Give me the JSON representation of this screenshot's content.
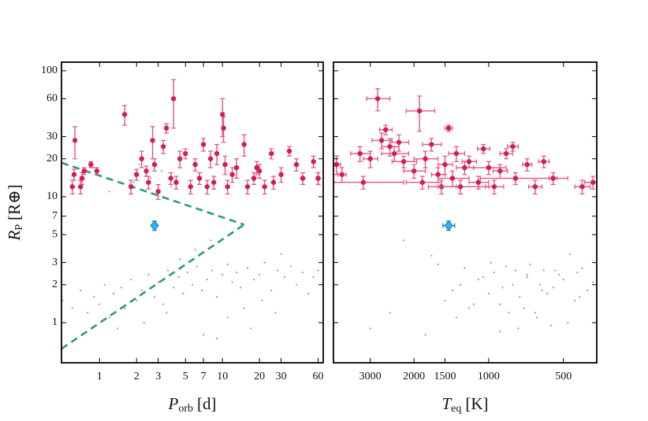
{
  "chart_data": [
    {
      "type": "scatter",
      "xscale": "log",
      "yscale": "log",
      "xlim": [
        0.49,
        66
      ],
      "ylim": [
        0.48,
        117
      ],
      "xticks": [
        1,
        2,
        3,
        5,
        7,
        10,
        20,
        30,
        60
      ],
      "yticks": [
        1,
        2,
        3,
        5,
        7,
        10,
        20,
        30,
        60,
        100
      ],
      "xlabel": {
        "main": "P",
        "sub": "orb",
        "unit": "[d]"
      },
      "ylabel": {
        "main": "R",
        "sub": "P",
        "unit": "[R⊕]"
      },
      "series": [
        {
          "marker": "dot",
          "color": "#9a9a9a",
          "x": [
            0.5,
            0.6,
            0.7,
            0.8,
            0.9,
            1.0,
            1.1,
            1.2,
            1.3,
            1.5,
            1.6,
            1.8,
            2.0,
            2.2,
            2.5,
            2.8,
            3.0,
            3.3,
            3.6,
            4.0,
            4.4,
            4.8,
            5.2,
            5.7,
            6.2,
            6.8,
            7.5,
            8.2,
            9.0,
            10,
            11,
            12,
            13,
            14,
            16,
            18,
            20,
            22,
            25,
            28,
            32,
            36,
            40,
            45,
            50,
            55,
            60,
            1.4,
            2.3,
            3.5,
            4.5,
            6.0,
            8.0,
            11,
            15,
            21,
            30,
            2.6,
            3.2,
            1.9,
            2.1,
            2.4,
            3.8,
            5.5,
            0.9,
            1.2,
            7,
            9,
            17,
            27
          ],
          "values": [
            1.5,
            1.3,
            1.8,
            1.2,
            1.6,
            1.4,
            2.0,
            1.1,
            1.7,
            1.9,
            1.3,
            2.2,
            1.5,
            1.8,
            2.4,
            1.6,
            2.1,
            1.4,
            2.6,
            1.9,
            2.3,
            1.7,
            2.5,
            2.0,
            2.8,
            1.8,
            2.2,
            2.6,
            1.6,
            2.4,
            2.9,
            2.1,
            2.5,
            1.9,
            2.7,
            2.2,
            2.4,
            3.0,
            1.8,
            2.6,
            2.3,
            2.8,
            2.0,
            2.5,
            1.7,
            2.3,
            2.6,
            0.9,
            1.0,
            1.2,
            3.2,
            3.8,
            4.5,
            1.1,
            1.3,
            1.5,
            3.5,
            14,
            16,
            13,
            18,
            15,
            12,
            11,
            17,
            11,
            0.8,
            0.75,
            0.9,
            1.2
          ]
        },
        {
          "marker": "circle",
          "color": "#d41a5a",
          "errcolor": "#e0557f",
          "x": [
            0.6,
            0.62,
            0.63,
            0.7,
            0.72,
            0.75,
            0.85,
            0.95,
            1.6,
            1.8,
            2.0,
            2.2,
            2.4,
            2.5,
            2.7,
            2.8,
            3.0,
            3.3,
            3.5,
            3.8,
            4.0,
            4.2,
            4.5,
            5.0,
            5.5,
            6.0,
            6.5,
            7.0,
            7.5,
            8.0,
            8.5,
            9.0,
            10,
            10.2,
            10.5,
            11,
            12,
            13,
            15,
            16,
            18,
            19,
            20,
            22,
            25,
            26,
            30,
            35,
            40,
            45,
            55,
            60,
            60
          ],
          "values": [
            12,
            15,
            28,
            12,
            14,
            16,
            18,
            16,
            45,
            12,
            15,
            20,
            16,
            13,
            28,
            18,
            11,
            25,
            35,
            14,
            60,
            13,
            20,
            22,
            12,
            18,
            14,
            26,
            12,
            20,
            13,
            22,
            45,
            35,
            18,
            12,
            15,
            17,
            26,
            12,
            14,
            17,
            16,
            12,
            22,
            13,
            15,
            23,
            18,
            14,
            19,
            14,
            14
          ],
          "yerr": [
            1.5,
            1.5,
            8,
            1.5,
            1.5,
            1,
            1,
            1,
            8,
            1.5,
            1.5,
            3,
            1.5,
            1.5,
            8,
            2,
            1.5,
            3,
            3,
            1.5,
            25,
            1.5,
            3,
            2,
            1.5,
            2,
            1.5,
            3,
            1.5,
            3,
            1.5,
            4,
            15,
            8,
            3,
            1.5,
            2,
            3,
            5,
            1.5,
            1.5,
            2,
            2,
            1.5,
            2,
            1.5,
            2,
            2,
            2,
            1.5,
            2,
            1.5,
            1.5
          ]
        },
        {
          "marker": "diamond",
          "color": "#29b6f6",
          "errcolor": "#0d7fb5",
          "x": [
            2.8
          ],
          "values": [
            5.9
          ],
          "yerr": [
            0.5
          ]
        }
      ],
      "lines": [
        {
          "color": "#2a9d78",
          "dash": true,
          "x": [
            0.49,
            15
          ],
          "values": [
            18.6,
            6.0
          ]
        },
        {
          "color": "#2a9d78",
          "dash": true,
          "x": [
            0.49,
            15
          ],
          "values": [
            0.62,
            6.0
          ]
        }
      ]
    },
    {
      "type": "scatter",
      "xscale": "log",
      "yscale": "log",
      "sharey": true,
      "xlim": [
        4220,
        367
      ],
      "ylim": [
        0.48,
        117
      ],
      "xticks": [
        3000,
        2000,
        1500,
        1000,
        500
      ],
      "xlabel": {
        "main": "T",
        "sub": "eq",
        "unit": "[K]"
      },
      "series": [
        {
          "marker": "dot",
          "color": "#9a9a9a",
          "x": [
            1500,
            1400,
            1300,
            1200,
            1100,
            1000,
            950,
            900,
            850,
            800,
            750,
            700,
            650,
            600,
            550,
            500,
            450,
            420,
            400,
            380,
            1350,
            1150,
            1050,
            880,
            780,
            720,
            680,
            620,
            580,
            520,
            480,
            440,
            2500,
            3000,
            1800,
            1600,
            2200,
            1700,
            900,
            760,
            640,
            560,
            470,
            430,
            1250,
            980,
            830,
            700,
            610,
            540
          ],
          "values": [
            1.5,
            1.8,
            2.0,
            1.3,
            2.2,
            1.7,
            2.5,
            1.4,
            2.8,
            2.0,
            1.6,
            2.4,
            1.2,
            2.6,
            1.9,
            2.2,
            1.5,
            2.7,
            1.8,
            2.1,
            1.1,
            1.4,
            2.3,
            1.9,
            2.6,
            1.3,
            2.9,
            2.0,
            1.7,
            2.4,
            1.0,
            2.5,
            1.2,
            0.9,
            0.8,
            2.9,
            4.5,
            3.4,
            0.85,
            0.9,
            1.1,
            0.95,
            3.5,
            1.6,
            2.7,
            3.0,
            1.2,
            2.3,
            1.8,
            2.6
          ]
        },
        {
          "marker": "circle",
          "color": "#d41a5a",
          "errcolor": "#e0557f",
          "x": [
            4100,
            3900,
            3300,
            3200,
            2800,
            3000,
            2700,
            2600,
            2500,
            2400,
            2200,
            2000,
            1900,
            1850,
            1800,
            1700,
            1600,
            1550,
            1500,
            1450,
            1400,
            1350,
            1300,
            1250,
            1200,
            1100,
            1050,
            1000,
            950,
            900,
            850,
            800,
            780,
            700,
            650,
            600,
            550,
            420,
            380,
            2300
          ],
          "values": [
            18,
            15,
            22,
            13,
            60,
            20,
            28,
            34,
            25,
            22,
            19,
            16,
            48,
            13,
            20,
            26,
            15,
            12,
            18,
            35,
            14,
            22,
            12,
            17,
            19,
            13,
            24,
            17,
            12,
            16,
            22,
            25,
            14,
            18,
            12,
            19,
            14,
            12,
            13,
            27
          ],
          "xerr": [
            150,
            150,
            300,
            1000,
            300,
            200,
            250,
            150,
            200,
            300,
            250,
            200,
            250,
            300,
            200,
            150,
            100,
            200,
            100,
            50,
            200,
            100,
            300,
            100,
            80,
            100,
            60,
            150,
            80,
            60,
            50,
            40,
            300,
            30,
            40,
            30,
            20,
            30,
            30,
            200
          ],
          "yerr": [
            3,
            2,
            3,
            1.5,
            12,
            3,
            4,
            3,
            4,
            3,
            2,
            2,
            15,
            1.5,
            3,
            3,
            2,
            1.5,
            3,
            2,
            2,
            3,
            1.5,
            2,
            2,
            1.5,
            2,
            2,
            1.5,
            2,
            2,
            2,
            1.5,
            2,
            1.5,
            2,
            1.5,
            1.5,
            1.5,
            4
          ]
        },
        {
          "marker": "diamond",
          "color": "#29b6f6",
          "errcolor": "#0d7fb5",
          "x": [
            1450
          ],
          "values": [
            5.9
          ],
          "xerr": [
            80
          ],
          "yerr": [
            0.5
          ]
        }
      ]
    }
  ]
}
